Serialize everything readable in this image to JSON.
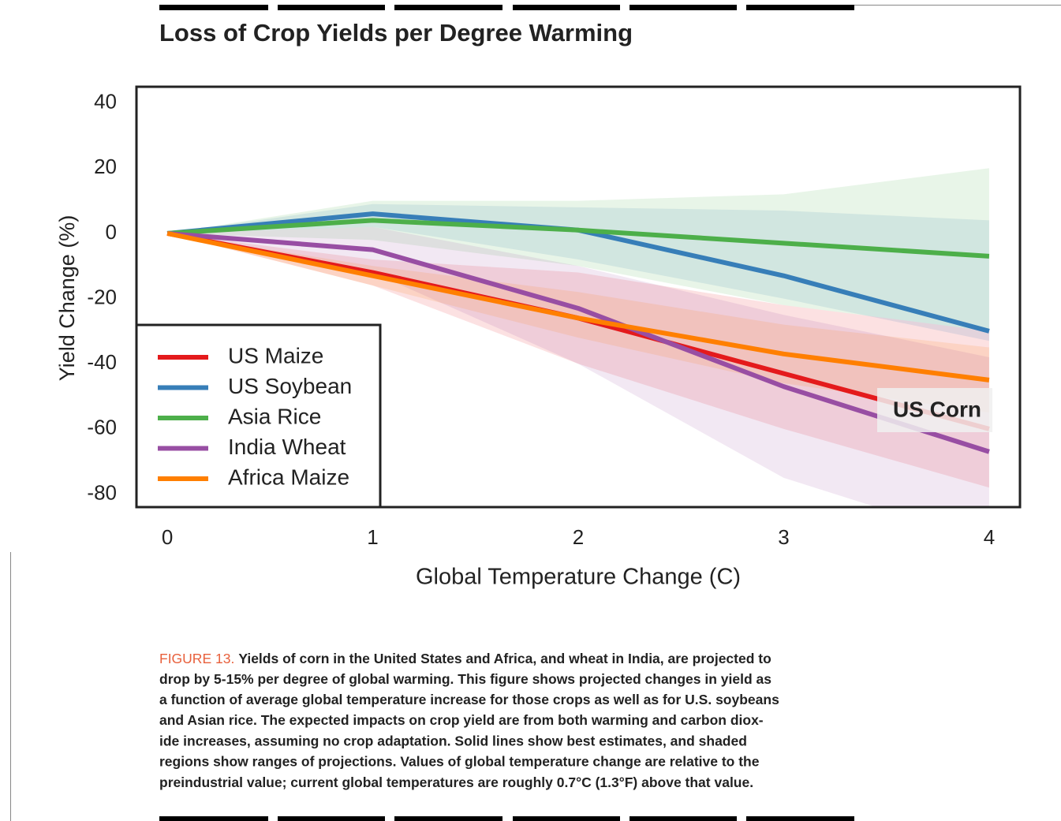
{
  "chart_data": {
    "type": "line",
    "title": "Loss of Crop Yields per Degree Warming",
    "x_label": "Global Temperature Change (C)",
    "y_label": "Yield Change (%)",
    "x": [
      0,
      1,
      2,
      3,
      4
    ],
    "xlim": [
      -0.15,
      4.15
    ],
    "xticks": [
      0,
      1,
      2,
      3,
      4
    ],
    "ylim": [
      -84,
      45
    ],
    "yticks": [
      -80,
      -60,
      -40,
      -20,
      0,
      20,
      40
    ],
    "grid": true,
    "legend_position": "lower left",
    "series": [
      {
        "name": "US Maize",
        "color": "#e41a1c",
        "values": [
          0,
          -12,
          -26,
          -43,
          -60
        ],
        "upper": [
          0,
          -8,
          -12,
          -22,
          -30
        ],
        "lower": [
          0,
          -16,
          -40,
          -60,
          -78
        ]
      },
      {
        "name": "US Soybean",
        "color": "#377eb8",
        "values": [
          0,
          6,
          1,
          -13,
          -30
        ],
        "upper": [
          0,
          9,
          8,
          7,
          4
        ],
        "lower": [
          0,
          2,
          -8,
          -20,
          -33
        ]
      },
      {
        "name": "Asia Rice",
        "color": "#4daf4a",
        "values": [
          0,
          4,
          1,
          -3,
          -7
        ],
        "upper": [
          0,
          10,
          10,
          12,
          20
        ],
        "lower": [
          0,
          -2,
          -10,
          -22,
          -30
        ]
      },
      {
        "name": "India Wheat",
        "color": "#984ea3",
        "values": [
          0,
          -5,
          -23,
          -47,
          -67
        ],
        "upper": [
          0,
          2,
          -10,
          -25,
          -38
        ],
        "lower": [
          0,
          -12,
          -40,
          -75,
          -95
        ]
      },
      {
        "name": "Africa Maize",
        "color": "#ff7f00",
        "values": [
          0,
          -13,
          -26,
          -37,
          -45
        ],
        "upper": [
          0,
          -10,
          -18,
          -28,
          -35
        ],
        "lower": [
          0,
          -16,
          -32,
          -46,
          -55
        ]
      }
    ],
    "annotation": "US Corn"
  },
  "caption": {
    "label": "FIGURE 13.",
    "lines": [
      "Yields of corn in the United States and Africa, and wheat in India, are projected to",
      "drop by 5-15% per degree of global warming. This figure shows projected changes in yield as",
      "a function of average global temperature increase for those crops as well as for U.S. soybeans",
      "and Asian rice. The expected impacts on crop yield are from both warming and carbon diox-",
      "ide increases, assuming no crop adaptation. Solid lines show best estimates, and shaded",
      "regions show ranges of projections. Values of global temperature change are relative to the",
      "preindustrial value; current global temperatures are roughly 0.7°C (1.3°F) above that value."
    ]
  }
}
